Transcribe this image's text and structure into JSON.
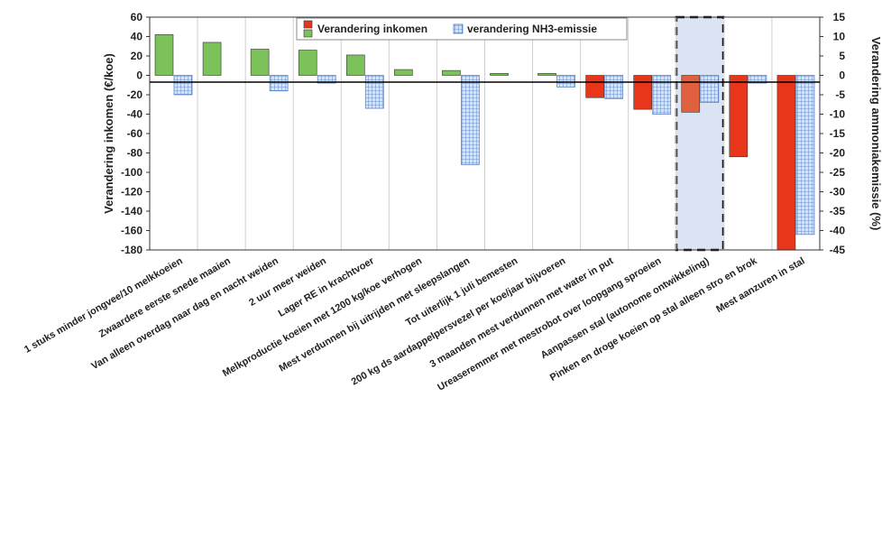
{
  "chart_data": {
    "type": "bar",
    "categories": [
      "1 stuks minder jongvee/10 melkkoeien",
      "Zwaardere eerste snede maaien",
      "Van alleen overdag naar dag en nacht weiden",
      "2 uur meer weiden",
      "Lager RE in krachtvoer",
      "Melkproductie koeien met 1200 kg/koe verhogen",
      "Mest verdunnen bij uitrijden met sleepslangen",
      "Tot uiterlijk 1 juli bemesten",
      "200 kg ds aardappelpersvezel per koe/jaar bijvoeren",
      "3 maanden mest verdunnen met water in put",
      "Ureaseremmer met mestrobot over loopgang sproeien",
      "Aanpassen stal (autonome ontwikkeling)",
      "Pinken en droge koeien op stal alleen stro en brok",
      "Mest aanzuren in stal"
    ],
    "series": [
      {
        "name": "Verandering inkomen",
        "axis": "left",
        "values": [
          42,
          34,
          27,
          26,
          21,
          6,
          5,
          2,
          2,
          -23,
          -35,
          -38,
          -84,
          -180
        ]
      },
      {
        "name": "verandering NH3-emissie",
        "axis": "right",
        "values": [
          -5,
          0,
          -4,
          -2,
          -8.5,
          0,
          -23,
          0,
          -3,
          -6,
          -10,
          -7,
          -2,
          -41
        ]
      }
    ],
    "ylabel": "Verandering inkomen (€/koe)",
    "y2label": "Verandering ammoniakemissie (%)",
    "ylim": [
      -180,
      60
    ],
    "y2lim": [
      -45,
      15
    ],
    "yticks": [
      "60",
      "40",
      "20",
      "0",
      "-20",
      "-40",
      "-60",
      "-80",
      "-100",
      "-120",
      "-140",
      "-160",
      "-180"
    ],
    "y2ticks": [
      "15",
      "10",
      "5",
      "0",
      "-5",
      "-10",
      "-15",
      "-20",
      "-25",
      "-30",
      "-35",
      "-40",
      "-45"
    ],
    "highlighted_category": "Aanpassen stal (autonome ontwikkeling)",
    "grid": "vertical category separators",
    "legend_position": "top-center",
    "colors": {
      "positive_income": "#7cc15a",
      "negative_income": "#e8361b",
      "highlighted_income": "#e06040",
      "emission_fill": "#c9d9f2",
      "emission_grid": "#5b86c8",
      "highlight_box": "#dbe4f2"
    }
  }
}
